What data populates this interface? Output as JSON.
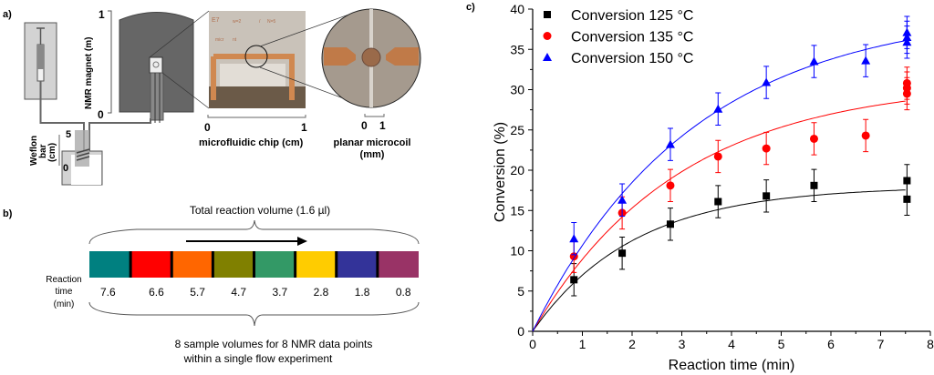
{
  "panel_a": {
    "label": "a)",
    "magnet_axis": {
      "title": "NMR magnet (m)",
      "ticks": [
        "0",
        "1"
      ]
    },
    "weflon_axis": {
      "title_line1": "Weflon",
      "title_line2": "bar",
      "title_line3": "(cm)",
      "ticks": [
        "0",
        "5"
      ]
    },
    "chip_photo_text": [
      "E7",
      "w=2",
      "/",
      "N=5",
      "micr",
      "nt"
    ],
    "chip_axis": {
      "title": "microfluidic chip (cm)",
      "ticks": [
        "0",
        "1"
      ]
    },
    "coil_axis": {
      "title_line1": "planar microcoil",
      "title_line2": "(mm)",
      "ticks": [
        "0",
        "1"
      ]
    }
  },
  "panel_b": {
    "label": "b)",
    "top_text": "Total reaction volume (1.6 µl)",
    "side_label": [
      "Reaction",
      "time",
      "(min)"
    ],
    "segments": [
      {
        "time": "7.6",
        "color": "#008080"
      },
      {
        "time": "6.6",
        "color": "#ff0000"
      },
      {
        "time": "5.7",
        "color": "#ff6600"
      },
      {
        "time": "4.7",
        "color": "#808000"
      },
      {
        "time": "3.7",
        "color": "#339966"
      },
      {
        "time": "2.8",
        "color": "#ffcc00"
      },
      {
        "time": "1.8",
        "color": "#333399"
      },
      {
        "time": "0.8",
        "color": "#993366"
      }
    ],
    "bottom_text_line1": "8 sample volumes for 8 NMR data points",
    "bottom_text_line2": "within a single flow experiment"
  },
  "chart_data": {
    "label": "c)",
    "type": "scatter",
    "xlabel": "Reaction time (min)",
    "ylabel": "Conversion (%)",
    "xlim": [
      0,
      8
    ],
    "ylim": [
      0,
      40
    ],
    "xticks": [
      "0",
      "1",
      "2",
      "3",
      "4",
      "5",
      "6",
      "7",
      "8"
    ],
    "yticks": [
      "0",
      "5",
      "10",
      "15",
      "20",
      "25",
      "30",
      "35",
      "40"
    ],
    "grid": false,
    "legend_position": "top-left",
    "error_bar": 2,
    "series": [
      {
        "name": "Conversion 125 °C",
        "color": "#000000",
        "marker": "square",
        "x": [
          0.83,
          1.8,
          2.77,
          3.73,
          4.7,
          5.66,
          7.53,
          7.53
        ],
        "y": [
          6.4,
          9.7,
          13.3,
          16.1,
          16.8,
          18.1,
          18.7,
          16.4
        ],
        "fit": {
          "A": 18,
          "k": 0.49
        }
      },
      {
        "name": "Conversion 135 °C",
        "color": "#ff0000",
        "marker": "circle",
        "x": [
          0.83,
          1.8,
          2.77,
          3.73,
          4.7,
          5.66,
          6.7,
          7.53,
          7.53,
          7.53
        ],
        "y": [
          9.3,
          14.7,
          18.1,
          21.7,
          22.7,
          23.9,
          24.3,
          29.5,
          30.2,
          30.8
        ],
        "fit": {
          "A": 31,
          "k": 0.34
        }
      },
      {
        "name": "Conversion 150 °C",
        "color": "#0000ff",
        "marker": "triangle",
        "x": [
          0.83,
          1.8,
          2.77,
          3.73,
          4.7,
          5.66,
          6.7,
          7.53,
          7.53,
          7.53
        ],
        "y": [
          11.5,
          16.3,
          23.2,
          27.6,
          30.9,
          33.5,
          33.6,
          35.9,
          36.5,
          37.1
        ],
        "fit": {
          "A": 40,
          "k": 0.31
        }
      }
    ]
  }
}
